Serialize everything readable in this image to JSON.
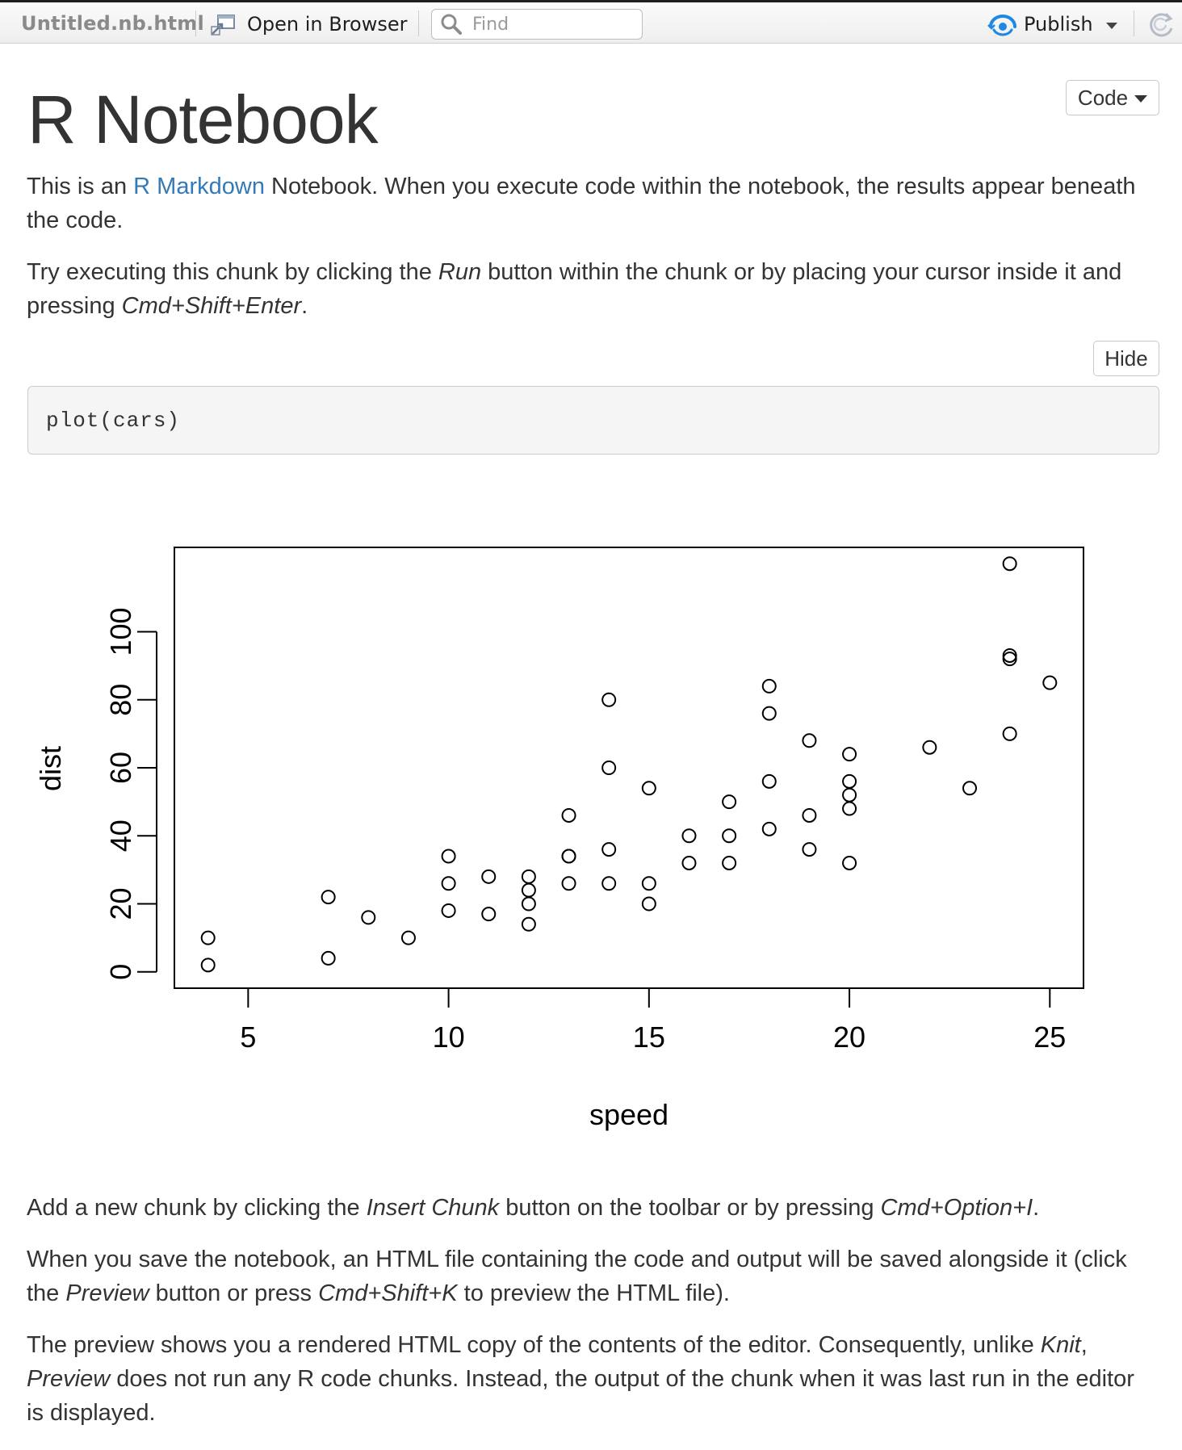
{
  "toolbar": {
    "file_name": "Untitled.nb.html",
    "open_in_browser_label": "Open in Browser",
    "find_placeholder": "Find",
    "publish_label": "Publish",
    "icons": [
      "open-in-browser-icon",
      "search-icon",
      "publish-icon",
      "refresh-icon"
    ]
  },
  "doc": {
    "title": "R Notebook",
    "code_toggle_label": "Code",
    "hide_button_label": "Hide",
    "p1": {
      "before": "This is an ",
      "link": "R Markdown",
      "after": " Notebook. When you execute code within the notebook, the results appear beneath the code."
    },
    "p2": {
      "t1": "Try executing this chunk by clicking the ",
      "e1": "Run",
      "t2": " button within the chunk or by placing your cursor inside it and pressing ",
      "e2": "Cmd+Shift+Enter",
      "t3": "."
    },
    "code": "plot(cars)",
    "p3": {
      "t1": "Add a new chunk by clicking the ",
      "e1": "Insert Chunk",
      "t2": " button on the toolbar or by pressing ",
      "e2": "Cmd+Option+I",
      "t3": "."
    },
    "p4": {
      "t1": "When you save the notebook, an HTML file containing the code and output will be saved alongside it (click the ",
      "e1": "Preview",
      "t2": " button or press ",
      "e2": "Cmd+Shift+K",
      "t3": " to preview the HTML file)."
    },
    "p5": {
      "t1": "The preview shows you a rendered HTML copy of the contents of the editor. Consequently, unlike ",
      "e1": "Knit",
      "t2": ", ",
      "e2": "Preview",
      "t3": " does not run any R code chunks. Instead, the output of the chunk when it was last run in the editor is displayed."
    }
  },
  "colors": {
    "link": "#337ab7",
    "text": "#333333",
    "publish_accent": "#1e88e5"
  },
  "chart_data": {
    "type": "scatter",
    "xlabel": "speed",
    "ylabel": "dist",
    "xlim": [
      4,
      25
    ],
    "ylim": [
      0,
      120
    ],
    "x_ticks": [
      5,
      10,
      15,
      20,
      25
    ],
    "y_ticks": [
      0,
      20,
      40,
      60,
      80,
      100
    ],
    "grid": false,
    "marker": "open-circle",
    "points": [
      [
        4,
        2
      ],
      [
        4,
        10
      ],
      [
        7,
        4
      ],
      [
        7,
        22
      ],
      [
        8,
        16
      ],
      [
        9,
        10
      ],
      [
        10,
        18
      ],
      [
        10,
        26
      ],
      [
        10,
        34
      ],
      [
        11,
        17
      ],
      [
        11,
        28
      ],
      [
        12,
        14
      ],
      [
        12,
        20
      ],
      [
        12,
        24
      ],
      [
        12,
        28
      ],
      [
        13,
        26
      ],
      [
        13,
        34
      ],
      [
        13,
        34
      ],
      [
        13,
        46
      ],
      [
        14,
        26
      ],
      [
        14,
        36
      ],
      [
        14,
        60
      ],
      [
        14,
        80
      ],
      [
        15,
        20
      ],
      [
        15,
        26
      ],
      [
        15,
        54
      ],
      [
        16,
        32
      ],
      [
        16,
        40
      ],
      [
        17,
        32
      ],
      [
        17,
        40
      ],
      [
        17,
        50
      ],
      [
        18,
        42
      ],
      [
        18,
        56
      ],
      [
        18,
        76
      ],
      [
        18,
        84
      ],
      [
        19,
        36
      ],
      [
        19,
        46
      ],
      [
        19,
        68
      ],
      [
        20,
        32
      ],
      [
        20,
        48
      ],
      [
        20,
        52
      ],
      [
        20,
        56
      ],
      [
        20,
        64
      ],
      [
        22,
        66
      ],
      [
        23,
        54
      ],
      [
        24,
        70
      ],
      [
        24,
        92
      ],
      [
        24,
        93
      ],
      [
        24,
        120
      ],
      [
        25,
        85
      ]
    ]
  }
}
